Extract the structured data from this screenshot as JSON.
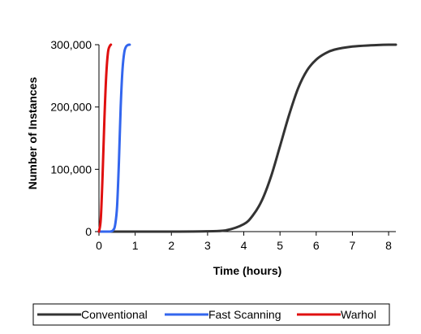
{
  "chart_data": {
    "type": "line",
    "title": "",
    "xlabel": "Time (hours)",
    "ylabel": "Number of Instances",
    "xlim": [
      0,
      8.2
    ],
    "ylim": [
      0,
      300000
    ],
    "x_ticks": [
      0,
      1,
      2,
      3,
      4,
      5,
      6,
      7,
      8
    ],
    "x_tick_labels": [
      "0",
      "1",
      "2",
      "3",
      "4",
      "5",
      "6",
      "7",
      "8"
    ],
    "y_ticks": [
      0,
      100000,
      200000,
      300000
    ],
    "y_tick_labels": [
      "0",
      "100,000",
      "200,000",
      "300,000"
    ],
    "grid": false,
    "legend_position": "bottom",
    "series": [
      {
        "name": "Conventional",
        "color": "#333333",
        "x": [
          0,
          1,
          2,
          3,
          3.5,
          4,
          4.25,
          4.5,
          4.75,
          5,
          5.25,
          5.5,
          5.75,
          6,
          6.25,
          6.5,
          7,
          7.5,
          8,
          8.2
        ],
        "y": [
          0,
          0,
          0,
          500,
          2000,
          12000,
          26000,
          50000,
          88000,
          137000,
          187000,
          230000,
          259000,
          276000,
          286000,
          292000,
          297000,
          299000,
          300000,
          300000
        ]
      },
      {
        "name": "Fast Scanning",
        "color": "#3366ee",
        "x": [
          0,
          0.3,
          0.4,
          0.45,
          0.5,
          0.55,
          0.6,
          0.65,
          0.7,
          0.75,
          0.8,
          0.85
        ],
        "y": [
          0,
          0,
          3000,
          12000,
          40000,
          110000,
          200000,
          260000,
          288000,
          297000,
          299500,
          300000
        ]
      },
      {
        "name": "Warhol",
        "color": "#e01010",
        "x": [
          0,
          0.05,
          0.1,
          0.15,
          0.2,
          0.25,
          0.3,
          0.33
        ],
        "y": [
          0,
          20000,
          90000,
          180000,
          250000,
          288000,
          298000,
          300000
        ]
      }
    ]
  }
}
